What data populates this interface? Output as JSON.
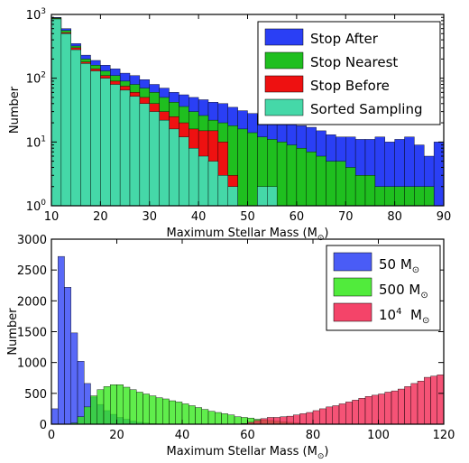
{
  "chart_data": [
    {
      "type": "bar",
      "yscale": "log",
      "xlabel": "Maximum Stellar Mass (M",
      "xlabel_sub": "⊙",
      "ylabel": "Number",
      "xlim": [
        10,
        90
      ],
      "ylim": [
        1,
        1000
      ],
      "xticks": [
        "10",
        "20",
        "30",
        "40",
        "50",
        "60",
        "70",
        "80",
        "90"
      ],
      "yticks": [
        {
          "base": "10",
          "exp": "0"
        },
        {
          "base": "10",
          "exp": "1"
        },
        {
          "base": "10",
          "exp": "2"
        },
        {
          "base": "10",
          "exp": "3"
        }
      ],
      "bin_width": 2,
      "bin_start": 10,
      "legend_position": "top-right",
      "series": [
        {
          "name": "Stop After",
          "color": "#2a3ff5",
          "values": [
            900,
            600,
            350,
            230,
            190,
            160,
            140,
            120,
            110,
            95,
            80,
            70,
            60,
            55,
            50,
            46,
            42,
            40,
            35,
            31,
            28,
            26,
            24,
            22,
            20,
            18,
            17,
            15,
            13,
            12,
            12,
            11,
            11,
            12,
            10,
            11,
            12,
            9,
            6,
            10
          ]
        },
        {
          "name": "Stop Nearest",
          "color": "#1fbf1f",
          "values": [
            880,
            560,
            320,
            200,
            160,
            130,
            110,
            90,
            80,
            70,
            60,
            50,
            42,
            36,
            30,
            26,
            22,
            20,
            18,
            16,
            14,
            12,
            11,
            10,
            9,
            8,
            7,
            6,
            5,
            5,
            4,
            3,
            3,
            2,
            2,
            2,
            2,
            2,
            2,
            1
          ]
        },
        {
          "name": "Stop Before",
          "color": "#ee1111",
          "values": [
            860,
            520,
            300,
            180,
            140,
            110,
            90,
            75,
            60,
            50,
            40,
            30,
            25,
            20,
            16,
            15,
            15,
            10,
            3,
            1,
            1,
            0,
            0,
            0,
            0,
            0,
            0,
            0,
            0,
            0,
            0,
            0,
            0,
            0,
            0,
            0,
            0,
            0,
            0,
            0
          ]
        },
        {
          "name": "Sorted Sampling",
          "color": "#45d8a8",
          "values": [
            850,
            500,
            280,
            170,
            130,
            100,
            80,
            65,
            52,
            40,
            30,
            22,
            16,
            12,
            8,
            6,
            5,
            3,
            2,
            1,
            1,
            2,
            2,
            0,
            0,
            0,
            0,
            0,
            0,
            0,
            0,
            0,
            0,
            0,
            0,
            0,
            0,
            0,
            0,
            0
          ]
        }
      ]
    },
    {
      "type": "bar",
      "yscale": "linear",
      "xlabel": "Maximum Stellar Mass (M",
      "xlabel_sub": "⊙",
      "ylabel": "Number",
      "xlim": [
        0,
        120
      ],
      "ylim": [
        0,
        3000
      ],
      "xticks": [
        "0",
        "20",
        "40",
        "60",
        "80",
        "100",
        "120"
      ],
      "yticks": [
        "0",
        "500",
        "1000",
        "1500",
        "2000",
        "2500",
        "3000"
      ],
      "bin_width": 2,
      "bin_start": 0,
      "legend_position": "top-right",
      "series": [
        {
          "name": "50 M",
          "sub": "⊙",
          "color": "#2a3ff5",
          "values": [
            250,
            2720,
            2220,
            1480,
            1020,
            660,
            440,
            320,
            220,
            160,
            110,
            80,
            50,
            30,
            20,
            10,
            6,
            4,
            2,
            1,
            0,
            0,
            0,
            0,
            0,
            0,
            0,
            0,
            0,
            0,
            0,
            0,
            0,
            0,
            0,
            0,
            0,
            0,
            0,
            0,
            0,
            0,
            0,
            0,
            0,
            0,
            0,
            0,
            0,
            0,
            0,
            0,
            0,
            0,
            0,
            0,
            0,
            0,
            0,
            0
          ]
        },
        {
          "name": "500 M",
          "sub": "⊙",
          "color": "#33e81a",
          "values": [
            0,
            0,
            0,
            20,
            120,
            280,
            460,
            560,
            610,
            640,
            640,
            600,
            560,
            520,
            490,
            460,
            430,
            410,
            380,
            360,
            330,
            300,
            270,
            240,
            210,
            190,
            170,
            150,
            120,
            110,
            100,
            80,
            70,
            60,
            50,
            40,
            30,
            20,
            10,
            5,
            3,
            2,
            1,
            0,
            0,
            0,
            0,
            0,
            0,
            0,
            0,
            0,
            0,
            0,
            0,
            0,
            0,
            0,
            0,
            0
          ]
        },
        {
          "name": "10",
          "sup": "4",
          "tail": "M",
          "sub": "⊙",
          "color": "#f2234f",
          "values": [
            0,
            0,
            0,
            0,
            0,
            0,
            0,
            0,
            0,
            0,
            0,
            0,
            0,
            0,
            0,
            0,
            0,
            0,
            0,
            0,
            0,
            0,
            0,
            0,
            0,
            0,
            0,
            0,
            0,
            10,
            30,
            60,
            90,
            110,
            110,
            120,
            130,
            150,
            170,
            190,
            220,
            250,
            280,
            300,
            330,
            360,
            390,
            420,
            450,
            470,
            490,
            520,
            540,
            570,
            610,
            660,
            700,
            760,
            780,
            800
          ]
        }
      ]
    }
  ]
}
